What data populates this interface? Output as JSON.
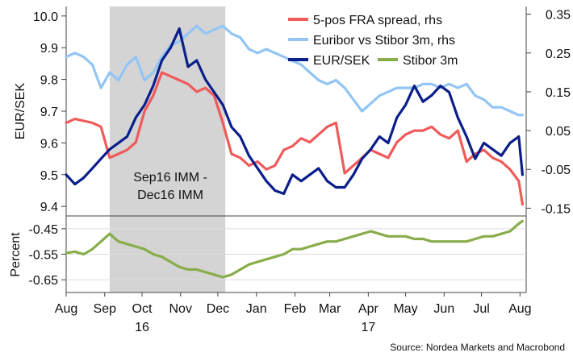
{
  "chart_data": [
    {
      "type": "line",
      "panel": "top",
      "ylabel": "EUR/SEK",
      "ylim": [
        9.37,
        10.03
      ],
      "y_ticks": [
        "10.0",
        "9.9",
        "9.8",
        "9.7",
        "9.6",
        "9.5",
        "9.4"
      ],
      "y_tick_values": [
        10.0,
        9.9,
        9.8,
        9.7,
        9.6,
        9.5,
        9.4
      ],
      "y2lim": [
        -0.17,
        0.37
      ],
      "y2_ticks": [
        "0.35",
        "0.25",
        "0.15",
        "0.05",
        "-0.05",
        "-0.15"
      ],
      "y2_tick_values": [
        0.35,
        0.25,
        0.15,
        0.05,
        -0.05,
        -0.15
      ],
      "shaded_region": {
        "x_start": "2016-09-05",
        "x_end": "2016-12-07",
        "label_line1": "Sep16 IMM -",
        "label_line2": "Dec16 IMM",
        "color": "#d4d4d4"
      },
      "legend_position": "top-right",
      "series": [
        {
          "name": "5-pos FRA spread, rhs",
          "axis": "right",
          "color": "#ef5b5b",
          "x": [
            "2016-08-01",
            "2016-08-08",
            "2016-08-15",
            "2016-08-22",
            "2016-08-29",
            "2016-09-05",
            "2016-09-12",
            "2016-09-19",
            "2016-09-26",
            "2016-10-03",
            "2016-10-10",
            "2016-10-17",
            "2016-10-24",
            "2016-10-31",
            "2016-11-07",
            "2016-11-14",
            "2016-11-21",
            "2016-11-28",
            "2016-12-05",
            "2016-12-12",
            "2016-12-19",
            "2016-12-26",
            "2017-01-02",
            "2017-01-09",
            "2017-01-16",
            "2017-01-23",
            "2017-01-30",
            "2017-02-06",
            "2017-02-13",
            "2017-02-20",
            "2017-02-27",
            "2017-03-06",
            "2017-03-13",
            "2017-03-20",
            "2017-03-27",
            "2017-04-03",
            "2017-04-10",
            "2017-04-17",
            "2017-04-24",
            "2017-05-01",
            "2017-05-08",
            "2017-05-15",
            "2017-05-22",
            "2017-05-29",
            "2017-06-05",
            "2017-06-12",
            "2017-06-19",
            "2017-06-26",
            "2017-07-03",
            "2017-07-10",
            "2017-07-17",
            "2017-07-24",
            "2017-07-31",
            "2017-08-03"
          ],
          "values": [
            0.07,
            0.08,
            0.075,
            0.07,
            0.06,
            -0.02,
            -0.01,
            0.0,
            0.02,
            0.1,
            0.14,
            0.2,
            0.19,
            0.18,
            0.17,
            0.15,
            0.16,
            0.14,
            0.07,
            -0.01,
            -0.02,
            -0.04,
            -0.03,
            -0.05,
            -0.04,
            0.0,
            0.01,
            0.03,
            0.02,
            0.04,
            0.06,
            0.07,
            -0.06,
            -0.04,
            -0.02,
            0.0,
            -0.01,
            -0.02,
            0.02,
            0.04,
            0.05,
            0.05,
            0.06,
            0.04,
            0.03,
            0.05,
            -0.03,
            -0.01,
            0.0,
            -0.02,
            -0.03,
            -0.05,
            -0.08,
            -0.14
          ]
        },
        {
          "name": "Euribor vs Stibor 3m, rhs",
          "axis": "right",
          "color": "#92c5f5",
          "x": [
            "2016-08-01",
            "2016-08-08",
            "2016-08-15",
            "2016-08-22",
            "2016-08-29",
            "2016-09-05",
            "2016-09-12",
            "2016-09-19",
            "2016-09-26",
            "2016-10-03",
            "2016-10-10",
            "2016-10-17",
            "2016-10-24",
            "2016-10-31",
            "2016-11-07",
            "2016-11-14",
            "2016-11-21",
            "2016-11-28",
            "2016-12-05",
            "2016-12-12",
            "2016-12-19",
            "2016-12-26",
            "2017-01-02",
            "2017-01-09",
            "2017-01-16",
            "2017-01-23",
            "2017-01-30",
            "2017-02-06",
            "2017-02-13",
            "2017-02-20",
            "2017-02-27",
            "2017-03-06",
            "2017-03-13",
            "2017-03-20",
            "2017-03-27",
            "2017-04-03",
            "2017-04-10",
            "2017-04-17",
            "2017-04-24",
            "2017-05-01",
            "2017-05-08",
            "2017-05-15",
            "2017-05-22",
            "2017-05-29",
            "2017-06-05",
            "2017-06-12",
            "2017-06-19",
            "2017-06-26",
            "2017-07-03",
            "2017-07-10",
            "2017-07-17",
            "2017-07-24",
            "2017-07-31",
            "2017-08-03"
          ],
          "values": [
            0.24,
            0.25,
            0.24,
            0.22,
            0.16,
            0.2,
            0.18,
            0.22,
            0.24,
            0.18,
            0.2,
            0.24,
            0.27,
            0.28,
            0.3,
            0.32,
            0.3,
            0.31,
            0.32,
            0.3,
            0.29,
            0.26,
            0.25,
            0.26,
            0.25,
            0.24,
            0.23,
            0.22,
            0.2,
            0.18,
            0.17,
            0.18,
            0.16,
            0.13,
            0.1,
            0.12,
            0.14,
            0.15,
            0.16,
            0.16,
            0.16,
            0.17,
            0.17,
            0.16,
            0.17,
            0.16,
            0.17,
            0.14,
            0.13,
            0.11,
            0.11,
            0.1,
            0.09,
            0.09
          ]
        },
        {
          "name": "EUR/SEK",
          "axis": "left",
          "color": "#0a1f8a",
          "x": [
            "2016-08-01",
            "2016-08-08",
            "2016-08-15",
            "2016-08-22",
            "2016-08-29",
            "2016-09-05",
            "2016-09-12",
            "2016-09-19",
            "2016-09-26",
            "2016-10-03",
            "2016-10-10",
            "2016-10-17",
            "2016-10-24",
            "2016-10-31",
            "2016-11-07",
            "2016-11-14",
            "2016-11-21",
            "2016-11-28",
            "2016-12-05",
            "2016-12-12",
            "2016-12-19",
            "2016-12-26",
            "2017-01-02",
            "2017-01-09",
            "2017-01-16",
            "2017-01-23",
            "2017-01-30",
            "2017-02-06",
            "2017-02-13",
            "2017-02-20",
            "2017-02-27",
            "2017-03-06",
            "2017-03-13",
            "2017-03-20",
            "2017-03-27",
            "2017-04-03",
            "2017-04-10",
            "2017-04-17",
            "2017-04-24",
            "2017-05-01",
            "2017-05-08",
            "2017-05-15",
            "2017-05-22",
            "2017-05-29",
            "2017-06-05",
            "2017-06-12",
            "2017-06-19",
            "2017-06-26",
            "2017-07-03",
            "2017-07-10",
            "2017-07-17",
            "2017-07-24",
            "2017-07-31",
            "2017-08-03"
          ],
          "values": [
            9.5,
            9.47,
            9.49,
            9.52,
            9.55,
            9.58,
            9.6,
            9.62,
            9.68,
            9.72,
            9.78,
            9.86,
            9.9,
            9.96,
            9.84,
            9.86,
            9.8,
            9.76,
            9.72,
            9.65,
            9.62,
            9.56,
            9.52,
            9.48,
            9.45,
            9.44,
            9.5,
            9.48,
            9.5,
            9.52,
            9.48,
            9.46,
            9.46,
            9.5,
            9.55,
            9.58,
            9.62,
            9.6,
            9.68,
            9.72,
            9.78,
            9.73,
            9.75,
            9.78,
            9.76,
            9.68,
            9.62,
            9.55,
            9.6,
            9.58,
            9.56,
            9.6,
            9.62,
            9.5
          ]
        }
      ]
    },
    {
      "type": "line",
      "panel": "bottom",
      "ylabel": "Percent",
      "ylim": [
        -0.7,
        -0.4
      ],
      "y_ticks": [
        "-0.45",
        "-0.55",
        "-0.65"
      ],
      "y_tick_values": [
        -0.45,
        -0.55,
        -0.65
      ],
      "shaded_region": {
        "x_start": "2016-09-05",
        "x_end": "2016-12-07",
        "color": "#d4d4d4"
      },
      "series": [
        {
          "name": "Stibor 3m",
          "axis": "left",
          "color": "#88ad4a",
          "x": [
            "2016-08-01",
            "2016-08-08",
            "2016-08-15",
            "2016-08-22",
            "2016-08-29",
            "2016-09-05",
            "2016-09-12",
            "2016-09-19",
            "2016-09-26",
            "2016-10-03",
            "2016-10-10",
            "2016-10-17",
            "2016-10-24",
            "2016-10-31",
            "2016-11-07",
            "2016-11-14",
            "2016-11-21",
            "2016-11-28",
            "2016-12-05",
            "2016-12-12",
            "2016-12-19",
            "2016-12-26",
            "2017-01-02",
            "2017-01-09",
            "2017-01-16",
            "2017-01-23",
            "2017-01-30",
            "2017-02-06",
            "2017-02-13",
            "2017-02-20",
            "2017-02-27",
            "2017-03-06",
            "2017-03-13",
            "2017-03-20",
            "2017-03-27",
            "2017-04-03",
            "2017-04-10",
            "2017-04-17",
            "2017-04-24",
            "2017-05-01",
            "2017-05-08",
            "2017-05-15",
            "2017-05-22",
            "2017-05-29",
            "2017-06-05",
            "2017-06-12",
            "2017-06-19",
            "2017-06-26",
            "2017-07-03",
            "2017-07-10",
            "2017-07-17",
            "2017-07-24",
            "2017-07-31",
            "2017-08-03"
          ],
          "values": [
            -0.545,
            -0.54,
            -0.55,
            -0.53,
            -0.5,
            -0.47,
            -0.5,
            -0.51,
            -0.52,
            -0.53,
            -0.55,
            -0.56,
            -0.58,
            -0.6,
            -0.61,
            -0.61,
            -0.62,
            -0.63,
            -0.64,
            -0.63,
            -0.61,
            -0.59,
            -0.58,
            -0.57,
            -0.56,
            -0.55,
            -0.53,
            -0.53,
            -0.52,
            -0.51,
            -0.5,
            -0.5,
            -0.49,
            -0.48,
            -0.47,
            -0.46,
            -0.47,
            -0.48,
            -0.48,
            -0.48,
            -0.49,
            -0.49,
            -0.5,
            -0.5,
            -0.5,
            -0.5,
            -0.5,
            -0.49,
            -0.48,
            -0.48,
            -0.47,
            -0.46,
            -0.43,
            -0.42
          ]
        }
      ]
    }
  ],
  "x_axis": {
    "start": "2016-08-01",
    "end": "2017-08-06",
    "months": [
      "Aug",
      "Sep",
      "Oct",
      "Nov",
      "Dec",
      "Jan",
      "Feb",
      "Mar",
      "Apr",
      "May",
      "Jun",
      "Jul",
      "Aug"
    ],
    "month_dates": [
      "2016-08-01",
      "2016-09-01",
      "2016-10-01",
      "2016-11-01",
      "2016-12-01",
      "2017-01-01",
      "2017-02-01",
      "2017-03-01",
      "2017-04-01",
      "2017-05-01",
      "2017-06-01",
      "2017-07-01",
      "2017-08-01"
    ],
    "years": [
      "16",
      "17"
    ],
    "year_under": [
      "Oct",
      "Apr"
    ]
  },
  "source": "Source: Nordea Markets and Macrobond"
}
